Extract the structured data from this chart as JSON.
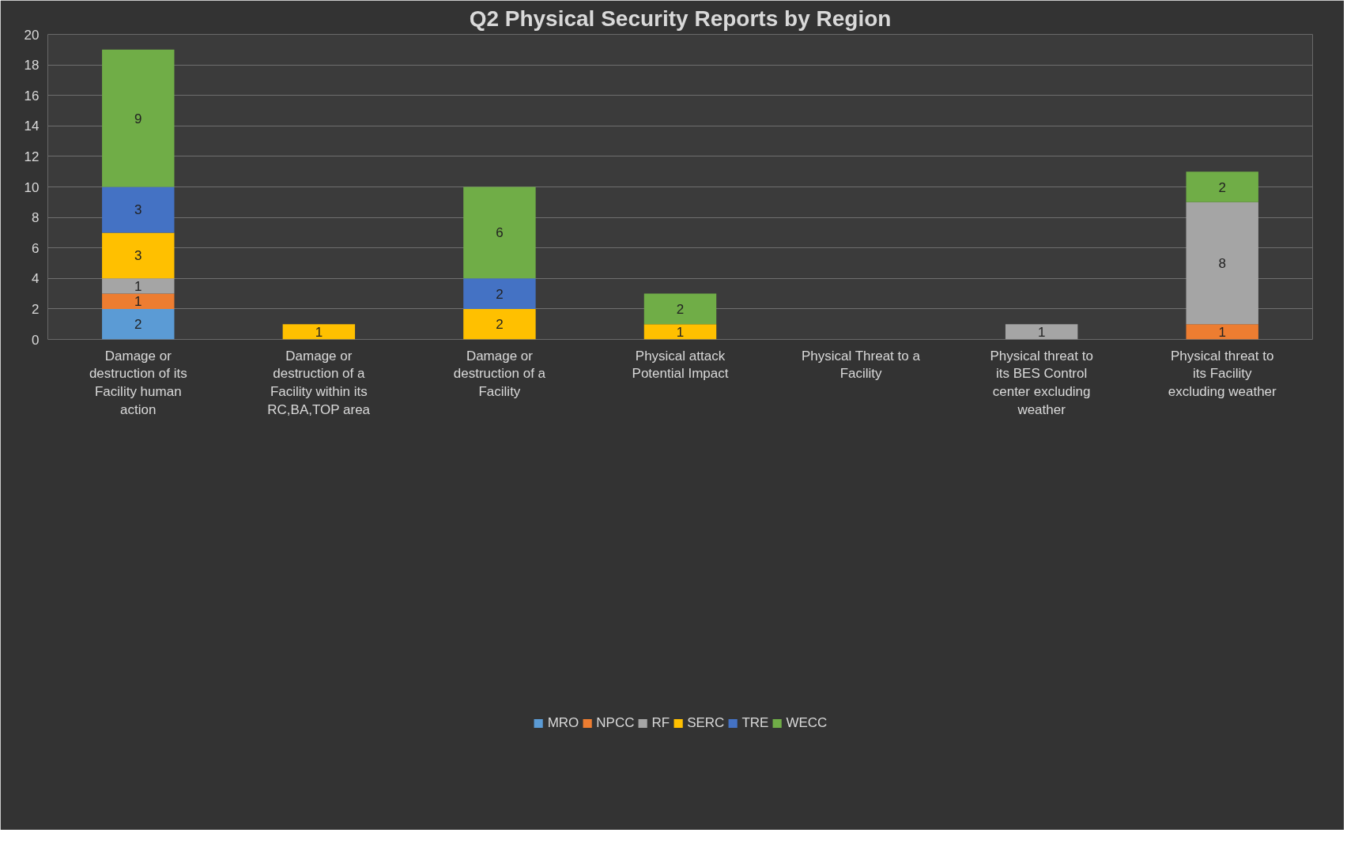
{
  "chart_data": {
    "type": "bar",
    "title": "Q2 Physical Security Reports by Region",
    "stacked": true,
    "categories": [
      "Damage or destruction of its Facility human action",
      "Damage or destruction of a Facility within its RC,BA,TOP area",
      "Damage or destruction of a Facility",
      "Physical attack Potential Impact",
      "Physical Threat to a Facility",
      "Physical threat to its BES Control center excluding weather",
      "Physical threat to its Facility excluding weather"
    ],
    "series": [
      {
        "name": "MRO",
        "color": "#5b9bd5",
        "values": [
          2,
          null,
          null,
          null,
          null,
          null,
          null
        ]
      },
      {
        "name": "NPCC",
        "color": "#ed7d31",
        "values": [
          1,
          null,
          null,
          null,
          null,
          null,
          1
        ]
      },
      {
        "name": "RF",
        "color": "#a5a5a5",
        "values": [
          1,
          null,
          null,
          null,
          null,
          1,
          8
        ]
      },
      {
        "name": "SERC",
        "color": "#ffc000",
        "values": [
          3,
          1,
          2,
          1,
          null,
          null,
          null
        ]
      },
      {
        "name": "TRE",
        "color": "#4472c4",
        "values": [
          3,
          null,
          2,
          null,
          null,
          null,
          null
        ]
      },
      {
        "name": "WECC",
        "color": "#70ad47",
        "values": [
          9,
          null,
          6,
          2,
          null,
          null,
          2
        ]
      }
    ],
    "ylim": [
      0,
      20
    ],
    "yticks": [
      0,
      2,
      4,
      6,
      8,
      10,
      12,
      14,
      16,
      18,
      20
    ],
    "grid": "y",
    "legend": "bottom",
    "data_labels": true
  }
}
